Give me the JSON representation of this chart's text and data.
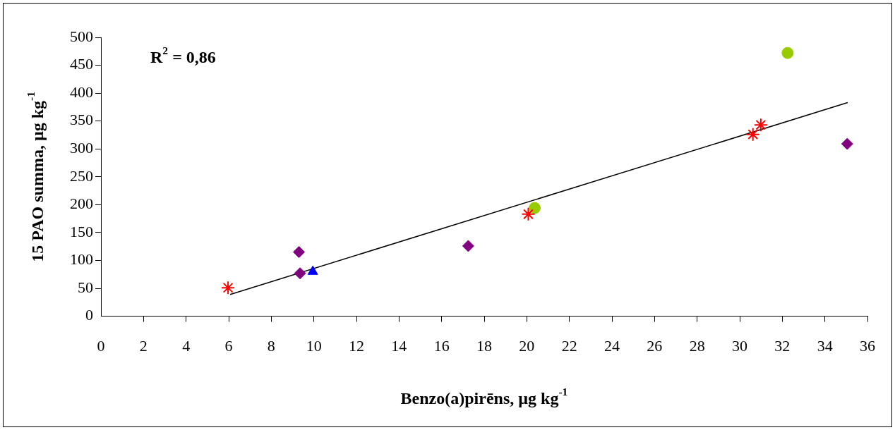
{
  "chart_data": {
    "type": "scatter",
    "xlabel": "Benzo(a)pirēns, µg kg$^{-1}$",
    "ylabel": "15 PAO summa, µg kg$^{-1}$",
    "annotations": [
      "R$^{2}$ = 0,86"
    ],
    "xlim": [
      0,
      36
    ],
    "xticks": [
      0,
      2,
      4,
      6,
      8,
      10,
      12,
      14,
      16,
      18,
      20,
      22,
      24,
      26,
      28,
      30,
      32,
      34,
      36
    ],
    "ylim": [
      0,
      500
    ],
    "yticks": [
      0,
      50,
      100,
      150,
      200,
      250,
      300,
      350,
      400,
      450,
      500
    ],
    "grid": false,
    "legend": false,
    "series": [
      {
        "marker": "diamond",
        "color": "#800080",
        "x": [
          9.3,
          9.35,
          17.25,
          35.05
        ],
        "values": [
          115,
          77,
          126,
          309
        ]
      },
      {
        "marker": "triangle",
        "color": "#0000ff",
        "x": [
          9.95
        ],
        "values": [
          80
        ]
      },
      {
        "marker": "cross",
        "color": "#ff0000",
        "x": [
          5.97,
          20.07,
          30.62,
          30.99
        ],
        "values": [
          51,
          183,
          326,
          343
        ]
      },
      {
        "marker": "circle",
        "color": "#99cc00",
        "x": [
          20.37,
          32.25
        ],
        "values": [
          194,
          472
        ]
      },
      {
        "type": "line",
        "marker": "none",
        "color": "#000000",
        "x": [
          6.07,
          35.07
        ],
        "values": [
          39,
          383
        ]
      }
    ]
  }
}
